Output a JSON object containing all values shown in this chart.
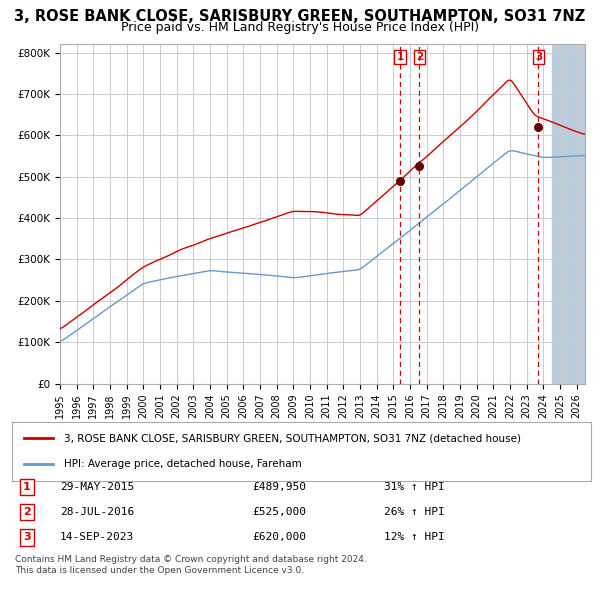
{
  "title": "3, ROSE BANK CLOSE, SARISBURY GREEN, SOUTHAMPTON, SO31 7NZ",
  "subtitle": "Price paid vs. HM Land Registry's House Price Index (HPI)",
  "red_line_label": "3, ROSE BANK CLOSE, SARISBURY GREEN, SOUTHAMPTON, SO31 7NZ (detached house)",
  "blue_line_label": "HPI: Average price, detached house, Fareham",
  "ylabel_ticks": [
    "£0",
    "£100K",
    "£200K",
    "£300K",
    "£400K",
    "£500K",
    "£600K",
    "£700K",
    "£800K"
  ],
  "ytick_values": [
    0,
    100000,
    200000,
    300000,
    400000,
    500000,
    600000,
    700000,
    800000
  ],
  "ylim": [
    0,
    820000
  ],
  "xlim_start": 1995.0,
  "xlim_end": 2026.5,
  "sale_dates": [
    2015.41,
    2016.57,
    2023.71
  ],
  "sale_prices": [
    489950,
    525000,
    620000
  ],
  "sale_labels": [
    "1",
    "2",
    "3"
  ],
  "sale_date_strings": [
    "29-MAY-2015",
    "28-JUL-2016",
    "14-SEP-2023"
  ],
  "sale_price_strings": [
    "£489,950",
    "£525,000",
    "£620,000"
  ],
  "sale_hpi_strings": [
    "31% ↑ HPI",
    "26% ↑ HPI",
    "12% ↑ HPI"
  ],
  "red_color": "#cc0000",
  "blue_color": "#6699cc",
  "sale_marker_color": "#660000",
  "dashed_line_color": "#cc0000",
  "shade_color": "#bbccdd",
  "background_color": "#ffffff",
  "grid_color": "#cccccc",
  "title_fontsize": 10.5,
  "subtitle_fontsize": 9,
  "copyright_text": "Contains HM Land Registry data © Crown copyright and database right 2024.\nThis data is licensed under the Open Government Licence v3.0.",
  "future_shade_start": 2024.5
}
